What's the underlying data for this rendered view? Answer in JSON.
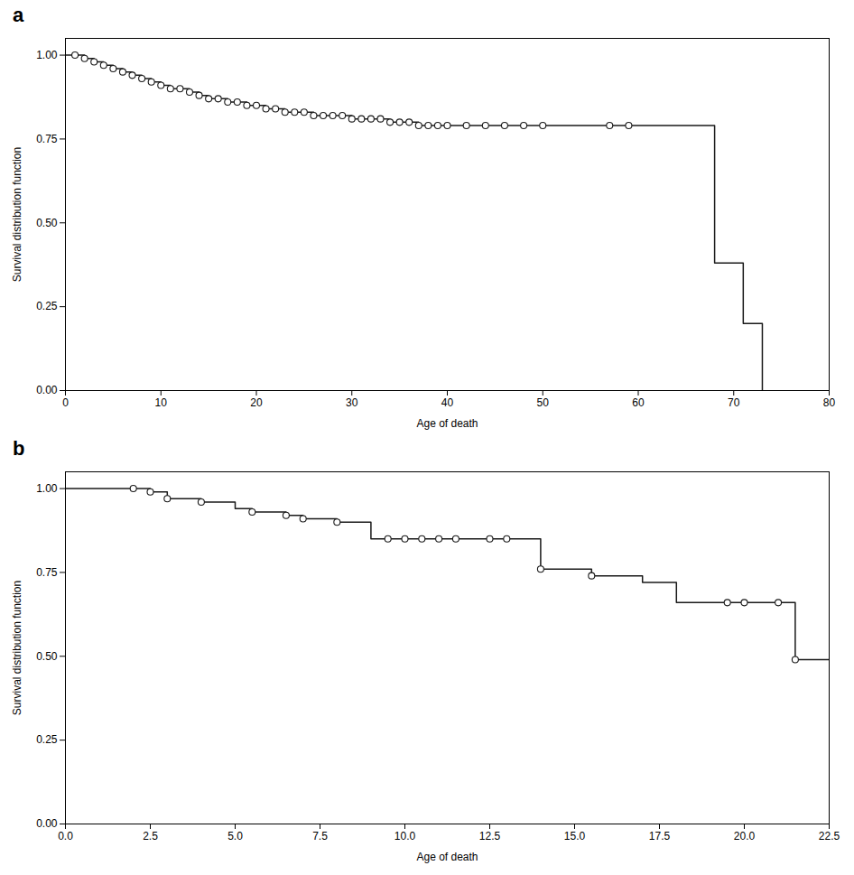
{
  "chart_data": [
    {
      "type": "line",
      "title": "a",
      "xlabel": "Age of death",
      "ylabel": "Survival distribution function",
      "xlim": [
        0,
        80
      ],
      "ylim": [
        0.0,
        1.05
      ],
      "xticks": [
        0,
        10,
        20,
        30,
        40,
        50,
        60,
        70,
        80
      ],
      "yticks": [
        {
          "value": 0.0,
          "label": "0.00"
        },
        {
          "value": 0.25,
          "label": "0.25"
        },
        {
          "value": 0.5,
          "label": "0.50"
        },
        {
          "value": 0.75,
          "label": "0.75"
        },
        {
          "value": 1.0,
          "label": "1.00"
        }
      ],
      "series": [
        {
          "type": "step",
          "color": "#1a1a1a",
          "x": [
            0,
            1,
            2,
            3,
            4,
            5,
            6,
            7,
            8,
            9,
            10,
            11,
            12,
            13,
            14,
            15,
            16,
            17,
            18,
            19,
            20,
            21,
            22,
            23,
            24,
            25,
            26,
            27,
            28,
            29,
            30,
            31,
            32,
            33,
            34,
            35,
            36,
            37,
            38,
            39,
            40,
            42,
            44,
            46,
            48,
            50,
            57,
            59,
            65,
            68,
            71,
            73
          ],
          "values": [
            1.0,
            1.0,
            0.99,
            0.98,
            0.97,
            0.96,
            0.95,
            0.94,
            0.93,
            0.92,
            0.91,
            0.9,
            0.9,
            0.89,
            0.88,
            0.87,
            0.87,
            0.86,
            0.86,
            0.85,
            0.85,
            0.84,
            0.84,
            0.83,
            0.83,
            0.83,
            0.82,
            0.82,
            0.82,
            0.82,
            0.81,
            0.81,
            0.81,
            0.81,
            0.8,
            0.8,
            0.8,
            0.79,
            0.79,
            0.79,
            0.79,
            0.79,
            0.79,
            0.79,
            0.79,
            0.79,
            0.79,
            0.79,
            0.79,
            0.38,
            0.2,
            0.0
          ]
        },
        {
          "type": "scatter",
          "marker": "circle",
          "color": "#1a1a1a",
          "x": [
            1,
            2,
            3,
            4,
            5,
            6,
            7,
            8,
            9,
            10,
            11,
            12,
            13,
            14,
            15,
            16,
            17,
            18,
            19,
            20,
            21,
            22,
            23,
            24,
            25,
            26,
            27,
            28,
            29,
            30,
            31,
            32,
            33,
            34,
            35,
            36,
            37,
            38,
            39,
            40,
            42,
            44,
            46,
            48,
            50,
            57,
            59
          ],
          "values": [
            1.0,
            0.99,
            0.98,
            0.97,
            0.96,
            0.95,
            0.94,
            0.93,
            0.92,
            0.91,
            0.9,
            0.9,
            0.89,
            0.88,
            0.87,
            0.87,
            0.86,
            0.86,
            0.85,
            0.85,
            0.84,
            0.84,
            0.83,
            0.83,
            0.83,
            0.82,
            0.82,
            0.82,
            0.82,
            0.81,
            0.81,
            0.81,
            0.81,
            0.8,
            0.8,
            0.8,
            0.79,
            0.79,
            0.79,
            0.79,
            0.79,
            0.79,
            0.79,
            0.79,
            0.79,
            0.79,
            0.79
          ]
        }
      ]
    },
    {
      "type": "line",
      "title": "b",
      "xlabel": "Age of death",
      "ylabel": "Survival distribution function",
      "xlim": [
        0.0,
        22.5
      ],
      "ylim": [
        0.0,
        1.05
      ],
      "xticks": [
        {
          "value": 0.0,
          "label": "0.0"
        },
        2.5,
        {
          "value": 5.0,
          "label": "5.0"
        },
        7.5,
        {
          "value": 10.0,
          "label": "10.0"
        },
        12.5,
        {
          "value": 15.0,
          "label": "15.0"
        },
        17.5,
        {
          "value": 20.0,
          "label": "20.0"
        },
        22.5
      ],
      "yticks": [
        {
          "value": 0.0,
          "label": "0.00"
        },
        {
          "value": 0.25,
          "label": "0.25"
        },
        {
          "value": 0.5,
          "label": "0.50"
        },
        {
          "value": 0.75,
          "label": "0.75"
        },
        {
          "value": 1.0,
          "label": "1.00"
        }
      ],
      "series": [
        {
          "type": "step",
          "color": "#1a1a1a",
          "x": [
            0.0,
            2.0,
            2.5,
            3.0,
            4.0,
            5.0,
            5.5,
            6.5,
            7.0,
            8.0,
            9.0,
            9.5,
            10.0,
            10.5,
            11.0,
            11.5,
            12.5,
            13.0,
            14.0,
            14.5,
            15.5,
            17.0,
            18.0,
            19.5,
            20.0,
            21.0,
            21.5,
            22.5
          ],
          "values": [
            1.0,
            1.0,
            0.99,
            0.97,
            0.96,
            0.94,
            0.93,
            0.92,
            0.91,
            0.9,
            0.85,
            0.85,
            0.85,
            0.85,
            0.85,
            0.85,
            0.85,
            0.85,
            0.76,
            0.76,
            0.74,
            0.72,
            0.66,
            0.66,
            0.66,
            0.66,
            0.49,
            0.49
          ]
        },
        {
          "type": "scatter",
          "marker": "circle",
          "color": "#1a1a1a",
          "x": [
            2.0,
            2.5,
            3.0,
            4.0,
            5.5,
            6.5,
            7.0,
            8.0,
            9.5,
            10.0,
            10.5,
            11.0,
            11.5,
            12.5,
            13.0,
            14.0,
            15.5,
            19.5,
            20.0,
            21.0,
            21.5
          ],
          "values": [
            1.0,
            0.99,
            0.97,
            0.96,
            0.93,
            0.92,
            0.91,
            0.9,
            0.85,
            0.85,
            0.85,
            0.85,
            0.85,
            0.85,
            0.85,
            0.76,
            0.74,
            0.66,
            0.66,
            0.66,
            0.49
          ]
        }
      ]
    }
  ]
}
